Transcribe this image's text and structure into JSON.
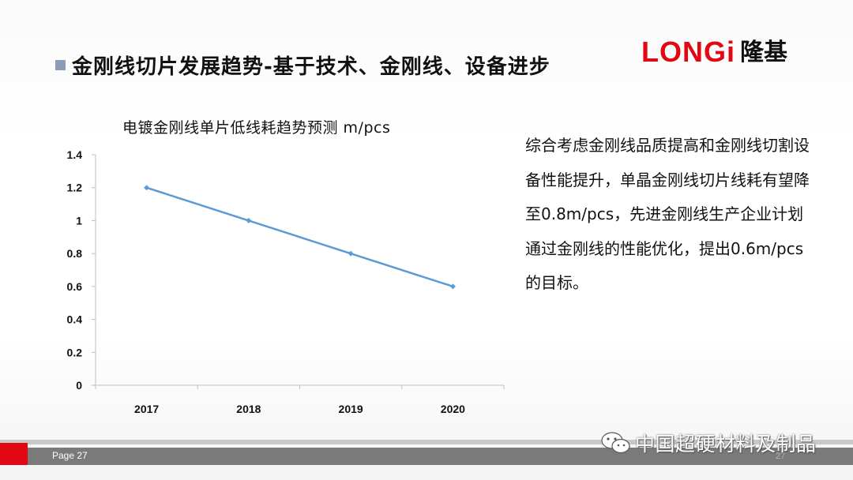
{
  "slide": {
    "title": "金刚线切片发展趋势-基于技术、金刚线、设备进步",
    "logo_en": "LONGi",
    "logo_cn": "隆基",
    "description": "综合考虑金刚线品质提高和金刚线切割设备性能提升，单晶金刚线切片线耗有望降至0.8m/pcs，先进金刚线生产企业计划通过金刚线的性能优化，提出0.6m/pcs的目标。",
    "page_label": "Page  27",
    "page_num_faint": "27",
    "watermark": "中国超硬材料及制品"
  },
  "colors": {
    "accent_red": "#e30613",
    "line": "#5b9bd5",
    "bullet": "#8c9db5"
  },
  "chart_data": {
    "type": "line",
    "title": "电镀金刚线单片低线耗趋势预测 m/pcs",
    "categories": [
      "2017",
      "2018",
      "2019",
      "2020"
    ],
    "series": [
      {
        "values": [
          1.2,
          1.0,
          0.8,
          0.6
        ]
      }
    ],
    "ylim": [
      0,
      1.4
    ],
    "yticks": [
      0,
      0.2,
      0.4,
      0.6,
      0.8,
      1,
      1.2,
      1.4
    ],
    "ytick_labels": [
      "0",
      "0.2",
      "0.4",
      "0.6",
      "0.8",
      "1",
      "1.2",
      "1.4"
    ],
    "grid": false,
    "legend": "none"
  }
}
